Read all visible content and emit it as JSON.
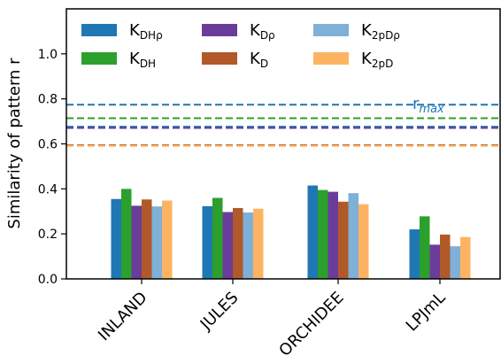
{
  "chart_data": {
    "type": "bar",
    "title": "",
    "xlabel": "",
    "ylabel": "Similarity of pattern r",
    "ylim": [
      0,
      1.2
    ],
    "yticks": [
      "0.0",
      "0.2",
      "0.4",
      "0.6",
      "0.8",
      "1.0"
    ],
    "categories": [
      "INLAND",
      "JULES",
      "ORCHIDEE",
      "LPJmL"
    ],
    "series": [
      {
        "name": "K",
        "sub": "DHρ",
        "color": "#1f77b4",
        "values": [
          0.355,
          0.323,
          0.415,
          0.22
        ]
      },
      {
        "name": "K",
        "sub": "DH",
        "color": "#2ca02c",
        "values": [
          0.4,
          0.36,
          0.395,
          0.278
        ]
      },
      {
        "name": "K",
        "sub": "Dρ",
        "color": "#6a3d9a",
        "values": [
          0.325,
          0.297,
          0.387,
          0.152
        ]
      },
      {
        "name": "K",
        "sub": "D",
        "color": "#b15928",
        "values": [
          0.353,
          0.315,
          0.343,
          0.197
        ]
      },
      {
        "name": "K",
        "sub": "2pDρ",
        "color": "#7fb0d8",
        "values": [
          0.322,
          0.295,
          0.381,
          0.145
        ]
      },
      {
        "name": "K",
        "sub": "2pD",
        "color": "#fdb462",
        "values": [
          0.348,
          0.312,
          0.332,
          0.186
        ]
      }
    ],
    "reference_lines": [
      {
        "value": 0.774,
        "color": "#1f77b4"
      },
      {
        "value": 0.714,
        "color": "#2ca02c"
      },
      {
        "value": 0.676,
        "color": "#1f77b4"
      },
      {
        "value": 0.671,
        "color": "#6a3d9a"
      },
      {
        "value": 0.594,
        "color": "#b15928"
      },
      {
        "value": 0.591,
        "color": "#fdb462"
      }
    ],
    "annotation": {
      "text": "r",
      "sub": "max",
      "color": "#1f77b4"
    },
    "legend_position": "top-left",
    "grid": false
  }
}
